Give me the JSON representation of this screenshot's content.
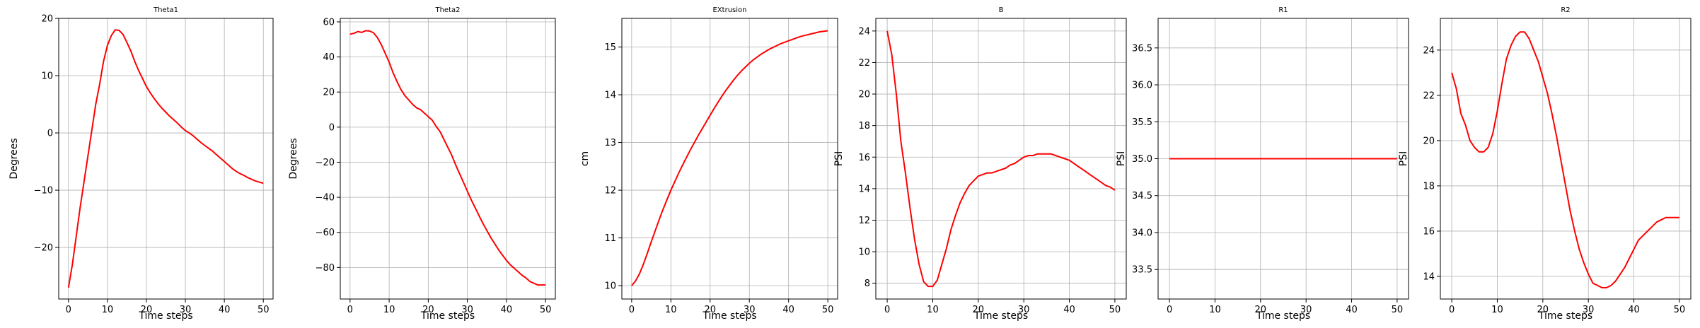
{
  "chart_data": [
    {
      "type": "line",
      "title": "Theta1",
      "xlabel": "Time steps",
      "ylabel": "Degrees",
      "xlim": [
        -2.5,
        52.5
      ],
      "ylim": [
        -29,
        20
      ],
      "xticks": [
        0,
        10,
        20,
        30,
        40,
        50
      ],
      "yticks": [
        -20,
        -10,
        0,
        10,
        20
      ],
      "grid": true,
      "color": "#ff0000",
      "series": [
        {
          "x": [
            0,
            1,
            2,
            3,
            4,
            5,
            6,
            7,
            8,
            9,
            10,
            11,
            12,
            13,
            14,
            15,
            16,
            17,
            18,
            19,
            20,
            21,
            22,
            23,
            24,
            25,
            26,
            27,
            28,
            29,
            30,
            31,
            32,
            33,
            34,
            35,
            36,
            37,
            38,
            39,
            40,
            41,
            42,
            43,
            44,
            45,
            46,
            47,
            48,
            49,
            50
          ],
          "values": [
            -27,
            -23,
            -18,
            -13,
            -8.5,
            -4,
            0.5,
            5,
            8.5,
            12.5,
            15.3,
            17,
            18,
            17.9,
            17.2,
            15.8,
            14.3,
            12.5,
            10.9,
            9.5,
            8.1,
            7,
            6,
            5.1,
            4.3,
            3.6,
            2.9,
            2.3,
            1.7,
            1,
            0.4,
            0,
            -0.5,
            -1.1,
            -1.7,
            -2.2,
            -2.7,
            -3.2,
            -3.8,
            -4.4,
            -5,
            -5.6,
            -6.2,
            -6.7,
            -7.1,
            -7.4,
            -7.8,
            -8.1,
            -8.4,
            -8.6,
            -8.8
          ]
        }
      ]
    },
    {
      "type": "line",
      "title": "Theta2",
      "xlabel": "Time steps",
      "ylabel": "Degrees",
      "xlim": [
        -2.5,
        52.5
      ],
      "ylim": [
        -98,
        62
      ],
      "xticks": [
        0,
        10,
        20,
        30,
        40,
        50
      ],
      "yticks": [
        -80,
        -60,
        -40,
        -20,
        0,
        20,
        40,
        60
      ],
      "grid": true,
      "color": "#ff0000",
      "series": [
        {
          "x": [
            0,
            1,
            2,
            3,
            4,
            5,
            6,
            7,
            8,
            9,
            10,
            11,
            12,
            13,
            14,
            15,
            16,
            17,
            18,
            19,
            20,
            21,
            22,
            23,
            24,
            25,
            26,
            27,
            28,
            29,
            30,
            31,
            32,
            33,
            34,
            35,
            36,
            37,
            38,
            39,
            40,
            41,
            42,
            43,
            44,
            45,
            46,
            47,
            48,
            49,
            50
          ],
          "values": [
            53,
            53.5,
            54.5,
            54,
            55,
            54.8,
            53.8,
            51,
            47,
            42,
            37,
            31,
            26,
            21.5,
            18,
            15.5,
            13,
            11,
            10,
            8,
            6,
            4,
            0.5,
            -2.5,
            -7,
            -11.5,
            -16,
            -21.5,
            -26.5,
            -31.5,
            -36.5,
            -41.5,
            -46,
            -50.5,
            -55,
            -59,
            -63,
            -66.5,
            -70,
            -73,
            -76,
            -78.5,
            -80.5,
            -82.5,
            -84.5,
            -86,
            -88,
            -89,
            -90,
            -90,
            -90
          ]
        }
      ]
    },
    {
      "type": "line",
      "title": "EXtrusion",
      "xlabel": "Time steps",
      "ylabel": "cm",
      "xlim": [
        -2.5,
        52.5
      ],
      "ylim": [
        9.72,
        15.6
      ],
      "xticks": [
        0,
        10,
        20,
        30,
        40,
        50
      ],
      "yticks": [
        10,
        11,
        12,
        13,
        14,
        15
      ],
      "grid": true,
      "color": "#ff0000",
      "series": [
        {
          "x": [
            0,
            1,
            2,
            3,
            4,
            5,
            6,
            7,
            8,
            9,
            10,
            11,
            12,
            13,
            14,
            15,
            16,
            17,
            18,
            19,
            20,
            21,
            22,
            23,
            24,
            25,
            26,
            27,
            28,
            29,
            30,
            31,
            32,
            33,
            34,
            35,
            36,
            37,
            38,
            39,
            40,
            41,
            42,
            43,
            44,
            45,
            46,
            47,
            48,
            49,
            50
          ],
          "values": [
            10,
            10.1,
            10.25,
            10.45,
            10.68,
            10.92,
            11.15,
            11.38,
            11.6,
            11.8,
            12,
            12.18,
            12.36,
            12.53,
            12.69,
            12.85,
            13,
            13.15,
            13.29,
            13.43,
            13.57,
            13.71,
            13.84,
            13.97,
            14.09,
            14.2,
            14.31,
            14.41,
            14.5,
            14.58,
            14.66,
            14.73,
            14.79,
            14.85,
            14.9,
            14.95,
            14.99,
            15.03,
            15.07,
            15.1,
            15.13,
            15.16,
            15.19,
            15.22,
            15.24,
            15.26,
            15.28,
            15.3,
            15.32,
            15.33,
            15.34
          ]
        }
      ]
    },
    {
      "type": "line",
      "title": "B",
      "xlabel": "Time steps",
      "ylabel": "PSI",
      "xlim": [
        -2.5,
        52.5
      ],
      "ylim": [
        7.0,
        24.8
      ],
      "xticks": [
        0,
        10,
        20,
        30,
        40,
        50
      ],
      "yticks": [
        8,
        10,
        12,
        14,
        16,
        18,
        20,
        22,
        24
      ],
      "grid": true,
      "color": "#ff0000",
      "series": [
        {
          "x": [
            0,
            1,
            2,
            3,
            4,
            5,
            6,
            7,
            8,
            9,
            10,
            11,
            12,
            13,
            14,
            15,
            16,
            17,
            18,
            19,
            20,
            21,
            22,
            23,
            24,
            25,
            26,
            27,
            28,
            29,
            30,
            31,
            32,
            33,
            34,
            35,
            36,
            37,
            38,
            39,
            40,
            41,
            42,
            43,
            44,
            45,
            46,
            47,
            48,
            49,
            50
          ],
          "values": [
            24,
            22.5,
            20,
            17,
            15,
            12.8,
            10.8,
            9.2,
            8.1,
            7.8,
            7.8,
            8.2,
            9.2,
            10.2,
            11.4,
            12.3,
            13.1,
            13.7,
            14.2,
            14.5,
            14.8,
            14.9,
            15,
            15,
            15.1,
            15.2,
            15.3,
            15.5,
            15.6,
            15.8,
            16,
            16.1,
            16.1,
            16.2,
            16.2,
            16.2,
            16.2,
            16.1,
            16,
            15.9,
            15.8,
            15.6,
            15.4,
            15.2,
            15,
            14.8,
            14.6,
            14.4,
            14.2,
            14.1,
            13.9
          ]
        }
      ]
    },
    {
      "type": "line",
      "title": "R1",
      "xlabel": "Time steps",
      "ylabel": "PSI",
      "xlim": [
        -2.5,
        52.5
      ],
      "ylim": [
        33.1,
        36.9
      ],
      "xticks": [
        0,
        10,
        20,
        30,
        40,
        50
      ],
      "yticks": [
        33.5,
        34.0,
        34.5,
        35.0,
        35.5,
        36.0,
        36.5
      ],
      "ytick_labels": [
        "33.5",
        "34.0",
        "34.5",
        "35.0",
        "35.5",
        "36.0",
        "36.5"
      ],
      "grid": true,
      "color": "#ff0000",
      "series": [
        {
          "x": [
            0,
            50
          ],
          "values": [
            35,
            35
          ]
        }
      ]
    },
    {
      "type": "line",
      "title": "R2",
      "xlabel": "Time steps",
      "ylabel": "PSI",
      "xlim": [
        -2.5,
        52.5
      ],
      "ylim": [
        13.0,
        25.4
      ],
      "xticks": [
        0,
        10,
        20,
        30,
        40,
        50
      ],
      "yticks": [
        14,
        16,
        18,
        20,
        22,
        24
      ],
      "grid": true,
      "color": "#ff0000",
      "series": [
        {
          "x": [
            0,
            1,
            2,
            3,
            4,
            5,
            6,
            7,
            8,
            9,
            10,
            11,
            12,
            13,
            14,
            15,
            16,
            17,
            18,
            19,
            20,
            21,
            22,
            23,
            24,
            25,
            26,
            27,
            28,
            29,
            30,
            31,
            32,
            33,
            34,
            35,
            36,
            37,
            38,
            39,
            40,
            41,
            42,
            43,
            44,
            45,
            46,
            47,
            48,
            49,
            50
          ],
          "values": [
            23,
            22.3,
            21.2,
            20.7,
            20,
            19.7,
            19.5,
            19.5,
            19.7,
            20.3,
            21.3,
            22.5,
            23.6,
            24.2,
            24.6,
            24.8,
            24.8,
            24.5,
            24,
            23.5,
            22.8,
            22.1,
            21.2,
            20.2,
            19.1,
            18,
            16.9,
            16,
            15.2,
            14.6,
            14.1,
            13.7,
            13.6,
            13.5,
            13.5,
            13.6,
            13.8,
            14.1,
            14.4,
            14.8,
            15.2,
            15.6,
            15.8,
            16,
            16.2,
            16.4,
            16.5,
            16.6,
            16.6,
            16.6,
            16.6
          ]
        }
      ]
    }
  ]
}
